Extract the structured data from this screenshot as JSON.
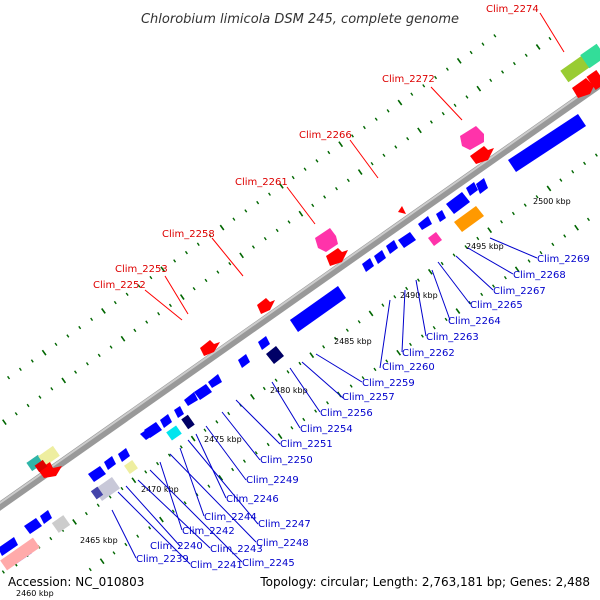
{
  "title": "Chlorobium limicola DSM 245, complete genome",
  "footer": {
    "accession": "Accession: NC_010803",
    "summary": "Topology: circular; Length: 2,763,181 bp; Genes: 2,488"
  },
  "colors": {
    "backbone": "#999999",
    "forward_label": "#dd0000",
    "reverse_label": "#0000cc",
    "tick": "#006600"
  },
  "kbp_ticks": [
    "2460 kbp",
    "2465 kbp",
    "2470 kbp",
    "2475 kbp",
    "2480 kbp",
    "2485 kbp",
    "2490 kbp",
    "2495 kbp",
    "2500 kbp"
  ],
  "forward_genes": [
    "Clim_2252",
    "Clim_2253",
    "Clim_2258",
    "Clim_2261",
    "Clim_2266",
    "Clim_2272",
    "Clim_2274"
  ],
  "reverse_genes": [
    "Clim_2239",
    "Clim_2240",
    "Clim_2241",
    "Clim_2242",
    "Clim_2243",
    "Clim_2244",
    "Clim_2245",
    "Clim_2246",
    "Clim_2247",
    "Clim_2248",
    "Clim_2249",
    "Clim_2250",
    "Clim_2251",
    "Clim_2254",
    "Clim_2256",
    "Clim_2257",
    "Clim_2259",
    "Clim_2260",
    "Clim_2262",
    "Clim_2263",
    "Clim_2264",
    "Clim_2265",
    "Clim_2267",
    "Clim_2268",
    "Clim_2269"
  ]
}
